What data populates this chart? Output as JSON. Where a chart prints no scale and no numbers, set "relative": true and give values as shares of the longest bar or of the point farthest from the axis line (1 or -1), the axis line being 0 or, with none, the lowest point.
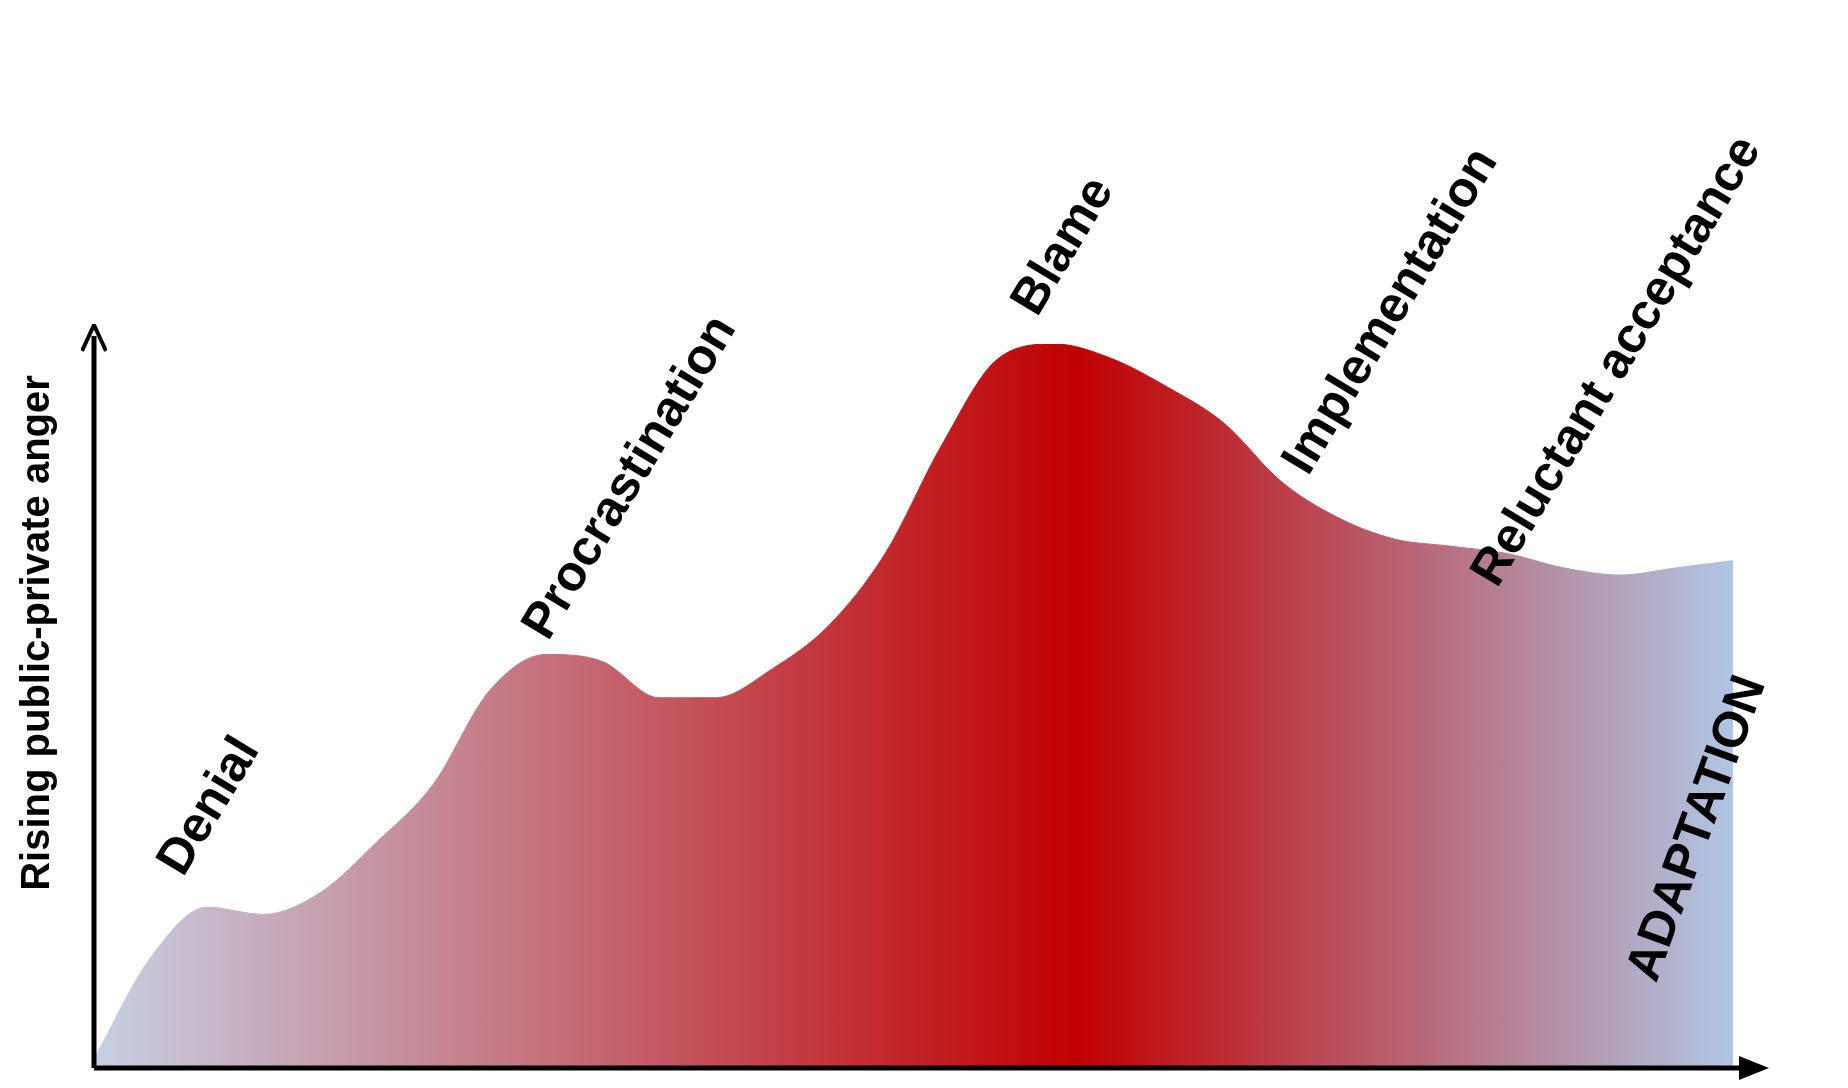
{
  "chart_data": {
    "type": "area",
    "relative": true,
    "color": "#c00000",
    "ylabel": "Rising public-private anger",
    "categories": [
      null,
      null,
      null,
      null,
      null,
      null,
      null,
      null,
      null,
      null,
      null,
      null,
      null,
      null,
      null,
      null,
      null,
      null,
      null,
      null,
      null,
      null,
      null,
      null,
      null,
      null,
      null,
      null,
      null,
      null
    ],
    "values": [
      0.01,
      0.15,
      0.22,
      0.21,
      0.24,
      0.31,
      0.39,
      0.52,
      0.57,
      0.56,
      0.51,
      0.51,
      0.55,
      0.61,
      0.71,
      0.86,
      0.98,
      1.0,
      0.98,
      0.94,
      0.89,
      0.81,
      0.76,
      0.73,
      0.72,
      0.71,
      0.69,
      0.68,
      0.69,
      0.7
    ],
    "annotations": [
      "Denial",
      "Procrastination",
      "Blame",
      "Implementation",
      "Reluctant acceptance",
      "ADAPTATION"
    ],
    "legend": false
  }
}
